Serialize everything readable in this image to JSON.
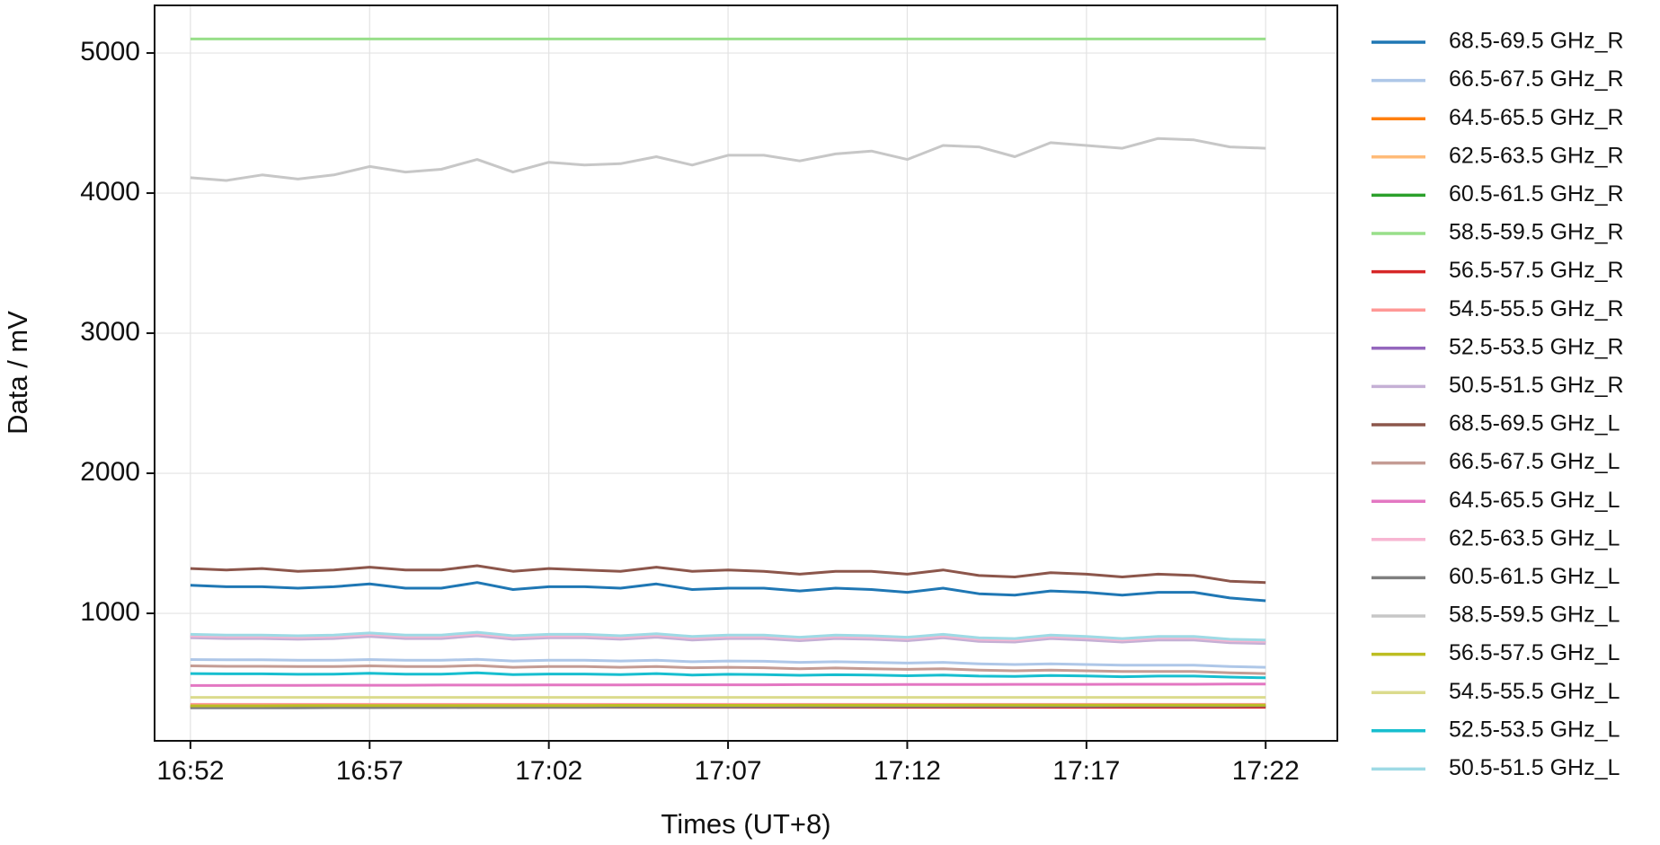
{
  "chart_data": {
    "type": "line",
    "xlabel": "Times (UT+8)",
    "ylabel": "Data / mV",
    "x": [
      "16:52",
      "16:53",
      "16:54",
      "16:55",
      "16:56",
      "16:57",
      "16:58",
      "16:59",
      "17:00",
      "17:01",
      "17:02",
      "17:03",
      "17:04",
      "17:05",
      "17:06",
      "17:07",
      "17:08",
      "17:09",
      "17:10",
      "17:11",
      "17:12",
      "17:13",
      "17:14",
      "17:15",
      "17:16",
      "17:17",
      "17:18",
      "17:19",
      "17:20",
      "17:21",
      "17:22"
    ],
    "xlim": [
      "16:51",
      "17:24"
    ],
    "xticks": [
      "16:52",
      "16:57",
      "17:02",
      "17:07",
      "17:12",
      "17:17",
      "17:22"
    ],
    "ylim": [
      90,
      5340
    ],
    "yticks": [
      1000,
      2000,
      3000,
      4000,
      5000
    ],
    "grid": true,
    "legend": "outside right",
    "series": [
      {
        "name": "68.5-69.5 GHz_R",
        "color": "#1f77b4",
        "values": [
          1200,
          1190,
          1190,
          1180,
          1190,
          1210,
          1180,
          1180,
          1220,
          1170,
          1190,
          1190,
          1180,
          1210,
          1170,
          1180,
          1180,
          1160,
          1180,
          1170,
          1150,
          1180,
          1140,
          1130,
          1160,
          1150,
          1130,
          1150,
          1150,
          1110,
          1090
        ]
      },
      {
        "name": "66.5-67.5 GHz_R",
        "color": "#aec7e8",
        "values": [
          670,
          668,
          668,
          665,
          665,
          670,
          665,
          665,
          672,
          660,
          665,
          665,
          660,
          665,
          655,
          660,
          658,
          650,
          655,
          650,
          645,
          650,
          640,
          635,
          640,
          635,
          630,
          630,
          630,
          620,
          615
        ]
      },
      {
        "name": "64.5-65.5 GHz_R",
        "color": "#ff7f0e",
        "values": [
          345,
          345,
          345,
          345,
          345,
          345,
          345,
          345,
          345,
          345,
          345,
          345,
          345,
          345,
          345,
          345,
          345,
          345,
          345,
          345,
          345,
          345,
          345,
          345,
          345,
          345,
          345,
          345,
          345,
          345,
          345
        ]
      },
      {
        "name": "62.5-63.5 GHz_R",
        "color": "#ffbb78",
        "values": [
          340,
          340,
          340,
          340,
          340,
          340,
          340,
          340,
          340,
          340,
          340,
          340,
          340,
          340,
          340,
          340,
          340,
          340,
          340,
          340,
          340,
          340,
          340,
          340,
          340,
          340,
          340,
          340,
          340,
          340,
          340
        ]
      },
      {
        "name": "60.5-61.5 GHz_R",
        "color": "#2ca02c",
        "values": [
          335,
          335,
          335,
          335,
          335,
          335,
          335,
          335,
          335,
          335,
          335,
          335,
          335,
          335,
          335,
          335,
          335,
          335,
          335,
          335,
          335,
          335,
          335,
          335,
          335,
          335,
          335,
          335,
          335,
          335,
          335
        ]
      },
      {
        "name": "58.5-59.5 GHz_R",
        "color": "#98df8a",
        "values": [
          5100,
          5100,
          5100,
          5100,
          5100,
          5100,
          5100,
          5100,
          5100,
          5100,
          5100,
          5100,
          5100,
          5100,
          5100,
          5100,
          5100,
          5100,
          5100,
          5100,
          5100,
          5100,
          5100,
          5100,
          5100,
          5100,
          5100,
          5100,
          5100,
          5100,
          5100
        ]
      },
      {
        "name": "56.5-57.5 GHz_R",
        "color": "#d62728",
        "values": [
          330,
          330,
          330,
          330,
          330,
          330,
          330,
          330,
          330,
          330,
          330,
          330,
          330,
          330,
          330,
          330,
          330,
          330,
          330,
          330,
          330,
          330,
          330,
          330,
          330,
          330,
          330,
          330,
          330,
          330,
          330
        ]
      },
      {
        "name": "54.5-55.5 GHz_R",
        "color": "#ff9896",
        "values": [
          350,
          350,
          350,
          350,
          350,
          350,
          350,
          350,
          350,
          350,
          350,
          350,
          350,
          350,
          350,
          350,
          350,
          350,
          350,
          350,
          350,
          350,
          350,
          350,
          350,
          350,
          350,
          350,
          350,
          350,
          350
        ]
      },
      {
        "name": "52.5-53.5 GHz_R",
        "color": "#9467bd",
        "values": [
          835,
          830,
          830,
          825,
          830,
          845,
          830,
          830,
          850,
          825,
          835,
          835,
          825,
          840,
          820,
          830,
          830,
          815,
          830,
          825,
          815,
          835,
          810,
          805,
          830,
          820,
          805,
          820,
          820,
          800,
          795
        ]
      },
      {
        "name": "50.5-51.5 GHz_R",
        "color": "#c5b0d5",
        "values": [
          825,
          820,
          820,
          815,
          820,
          835,
          820,
          820,
          840,
          815,
          825,
          825,
          815,
          830,
          810,
          820,
          820,
          805,
          820,
          815,
          805,
          825,
          800,
          795,
          820,
          810,
          795,
          810,
          810,
          790,
          785
        ]
      },
      {
        "name": "68.5-69.5 GHz_L",
        "color": "#8c564b",
        "values": [
          1320,
          1310,
          1320,
          1300,
          1310,
          1330,
          1310,
          1310,
          1340,
          1300,
          1320,
          1310,
          1300,
          1330,
          1300,
          1310,
          1300,
          1280,
          1300,
          1300,
          1280,
          1310,
          1270,
          1260,
          1290,
          1280,
          1260,
          1280,
          1270,
          1230,
          1220
        ]
      },
      {
        "name": "66.5-67.5 GHz_L",
        "color": "#c49c94",
        "values": [
          625,
          622,
          622,
          620,
          620,
          625,
          620,
          620,
          628,
          615,
          620,
          620,
          615,
          620,
          612,
          615,
          612,
          605,
          610,
          605,
          600,
          605,
          595,
          590,
          595,
          590,
          585,
          585,
          585,
          575,
          570
        ]
      },
      {
        "name": "64.5-65.5 GHz_L",
        "color": "#e377c2",
        "values": [
          485,
          485,
          486,
          486,
          487,
          487,
          487,
          488,
          488,
          488,
          489,
          489,
          489,
          490,
          490,
          490,
          490,
          491,
          491,
          491,
          492,
          492,
          492,
          493,
          493,
          493,
          494,
          494,
          494,
          495,
          495
        ]
      },
      {
        "name": "62.5-63.5 GHz_L",
        "color": "#f7b6d2",
        "values": [
          840,
          835,
          835,
          830,
          835,
          850,
          835,
          835,
          855,
          830,
          840,
          840,
          830,
          845,
          825,
          835,
          835,
          820,
          835,
          830,
          820,
          840,
          815,
          810,
          835,
          825,
          810,
          825,
          825,
          805,
          800
        ]
      },
      {
        "name": "60.5-61.5 GHz_L",
        "color": "#7f7f7f",
        "values": [
          325,
          325,
          326,
          326,
          327,
          327,
          328,
          328,
          329,
          329,
          330,
          330,
          331,
          331,
          332,
          332,
          333,
          333,
          334,
          334,
          335,
          335,
          336,
          336,
          337,
          337,
          338,
          338,
          339,
          339,
          340
        ]
      },
      {
        "name": "58.5-59.5 GHz_L",
        "color": "#c7c7c7",
        "values": [
          4110,
          4090,
          4130,
          4100,
          4130,
          4190,
          4150,
          4170,
          4240,
          4150,
          4220,
          4200,
          4210,
          4260,
          4200,
          4270,
          4270,
          4230,
          4280,
          4300,
          4240,
          4340,
          4330,
          4260,
          4360,
          4340,
          4320,
          4390,
          4380,
          4330,
          4320
        ]
      },
      {
        "name": "56.5-57.5 GHz_L",
        "color": "#bcbd22",
        "values": [
          340,
          340,
          340,
          341,
          341,
          341,
          341,
          342,
          342,
          342,
          342,
          342,
          343,
          343,
          343,
          343,
          343,
          344,
          344,
          344,
          344,
          344,
          345,
          345,
          345,
          345,
          345,
          345,
          345,
          345,
          345
        ]
      },
      {
        "name": "54.5-55.5 GHz_L",
        "color": "#dbdb8d",
        "values": [
          400,
          400,
          400,
          400,
          400,
          400,
          400,
          400,
          400,
          400,
          400,
          400,
          400,
          400,
          400,
          400,
          400,
          400,
          400,
          400,
          400,
          400,
          400,
          400,
          400,
          400,
          400,
          400,
          400,
          400,
          400
        ]
      },
      {
        "name": "52.5-53.5 GHz_L",
        "color": "#17becf",
        "values": [
          570,
          568,
          568,
          565,
          566,
          572,
          566,
          566,
          575,
          563,
          567,
          567,
          563,
          570,
          560,
          565,
          563,
          558,
          562,
          560,
          555,
          560,
          552,
          550,
          556,
          553,
          548,
          552,
          552,
          545,
          540
        ]
      },
      {
        "name": "50.5-51.5 GHz_L",
        "color": "#9edae5",
        "values": [
          850,
          845,
          845,
          840,
          845,
          860,
          845,
          845,
          865,
          840,
          850,
          850,
          840,
          855,
          835,
          845,
          845,
          830,
          845,
          840,
          830,
          850,
          825,
          820,
          845,
          835,
          820,
          835,
          835,
          815,
          810
        ]
      }
    ]
  }
}
